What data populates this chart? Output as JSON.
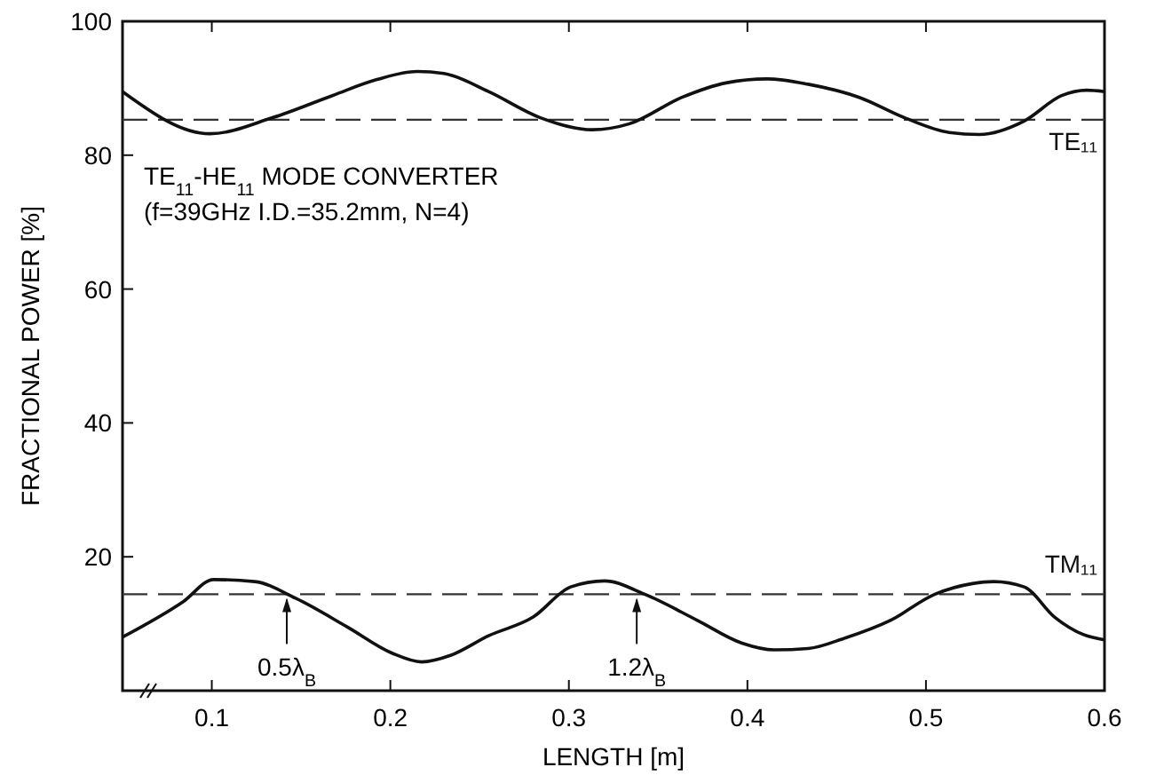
{
  "chart_data": {
    "type": "line",
    "xlabel": "LENGTH [m]",
    "ylabel": "FRACTIONAL POWER [%]",
    "xlim": [
      0.05,
      0.6
    ],
    "xticks": [
      {
        "value": 0.1,
        "label": "0.1"
      },
      {
        "value": 0.2,
        "label": "0.2"
      },
      {
        "value": 0.3,
        "label": "0.3"
      },
      {
        "value": 0.4,
        "label": "0.4"
      },
      {
        "value": 0.5,
        "label": "0.5"
      },
      {
        "value": 0.6,
        "label": "0.6"
      }
    ],
    "ylim": [
      0,
      100
    ],
    "yticks": [
      20,
      40,
      60,
      80,
      100
    ],
    "grid": false,
    "marker": "none",
    "line_style": "solid",
    "series": [
      {
        "name": "TE₁₁",
        "color": "#111111",
        "x": [
          0.05,
          0.099,
          0.134,
          0.1675,
          0.1925,
          0.215,
          0.23,
          0.255,
          0.284,
          0.313,
          0.334,
          0.363,
          0.388,
          0.411,
          0.434,
          0.463,
          0.488,
          0.513,
          0.53,
          0.555,
          0.576,
          0.59,
          0.6
        ],
        "values": [
          89.5,
          83.2,
          85.6,
          88.9,
          91.3,
          92.5,
          92.2,
          89.5,
          85.6,
          83.8,
          84.7,
          88.6,
          90.8,
          91.4,
          90.6,
          88.6,
          85.6,
          83.4,
          83.1,
          85.1,
          88.9,
          89.7,
          89.5
        ]
      },
      {
        "name": "TM₁₁",
        "color": "#111111",
        "x": [
          0.05,
          0.084,
          0.101,
          0.124,
          0.147,
          0.176,
          0.201,
          0.2175,
          0.234,
          0.255,
          0.28,
          0.301,
          0.32,
          0.3425,
          0.372,
          0.397,
          0.415,
          0.434,
          0.455,
          0.48,
          0.505,
          0.526,
          0.538,
          0.555,
          0.572,
          0.588,
          0.6
        ],
        "values": [
          8.0,
          13.3,
          16.6,
          16.3,
          13.8,
          9.5,
          5.6,
          4.3,
          5.3,
          8.2,
          11.0,
          15.5,
          16.4,
          14.4,
          10.5,
          7.1,
          6.1,
          6.3,
          7.9,
          10.5,
          14.4,
          16.0,
          16.3,
          15.5,
          11.0,
          8.4,
          7.6
        ]
      }
    ],
    "ref_lines": [
      {
        "axis": "y",
        "value": 85.3,
        "line_style": "dashed",
        "color": "#333333"
      },
      {
        "axis": "y",
        "value": 14.4,
        "line_style": "dashed",
        "color": "#333333"
      }
    ],
    "annotations": [
      "TE$_{11}$-HE$_{11}$ MODE CONVERTER",
      "(f=39GHz I.D.=35.2mm, N=4)",
      {
        "text": "0.5λ$_{B}$",
        "x": 0.142,
        "y": 14.4
      },
      {
        "text": "1.2λ$_{B}$",
        "x": 0.338,
        "y": 14.4
      }
    ]
  }
}
